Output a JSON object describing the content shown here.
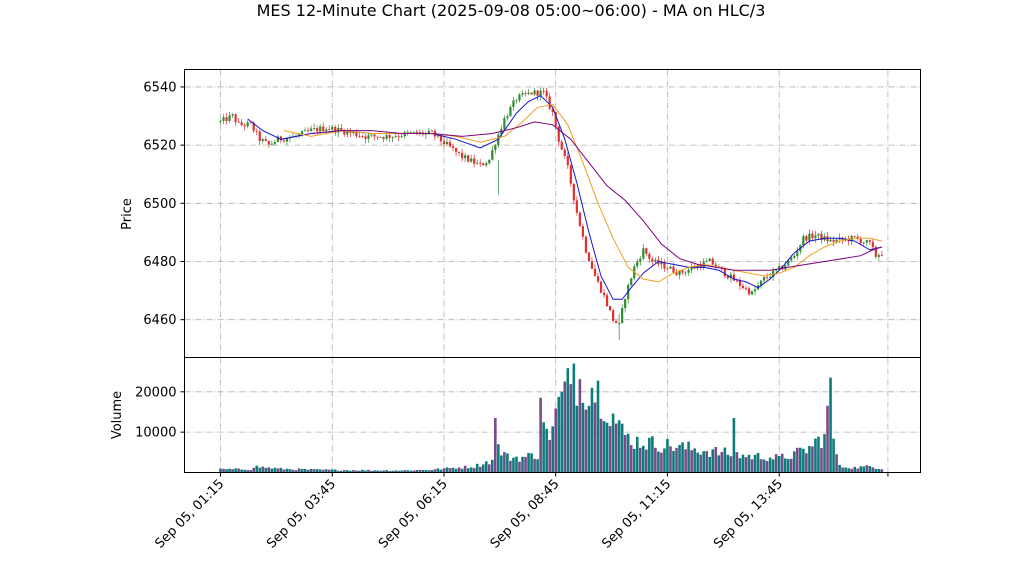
{
  "chart_data": {
    "type": "candlestick",
    "title": "MES 12-Minute Chart (2025-09-08 05:00~06:00) - MA on HLC/3",
    "price_panel": {
      "ylabel": "Price",
      "ylim": [
        6447,
        6546
      ],
      "yticks": [
        6460,
        6480,
        6500,
        6520,
        6540
      ],
      "grid": true,
      "candle_colors": {
        "up": "#2e8b2e",
        "down": "#e03030"
      },
      "price_path": [
        [
          0,
          6528
        ],
        [
          4,
          6530
        ],
        [
          6,
          6527
        ],
        [
          10,
          6527
        ],
        [
          13,
          6522
        ],
        [
          16,
          6520
        ],
        [
          19,
          6522
        ],
        [
          25,
          6523
        ],
        [
          30,
          6525
        ],
        [
          35,
          6526
        ],
        [
          40,
          6525
        ],
        [
          48,
          6523
        ],
        [
          55,
          6523
        ],
        [
          63,
          6524
        ],
        [
          70,
          6524
        ],
        [
          75,
          6520
        ],
        [
          80,
          6516
        ],
        [
          86,
          6513
        ],
        [
          89,
          6515
        ],
        [
          91,
          6521
        ],
        [
          94,
          6529
        ],
        [
          98,
          6536
        ],
        [
          103,
          6538
        ],
        [
          107,
          6538
        ],
        [
          110,
          6531
        ],
        [
          112,
          6522
        ],
        [
          115,
          6512
        ],
        [
          118,
          6497
        ],
        [
          121,
          6484
        ],
        [
          124,
          6475
        ],
        [
          127,
          6468
        ],
        [
          130,
          6460
        ],
        [
          132,
          6458
        ],
        [
          134,
          6468
        ],
        [
          137,
          6478
        ],
        [
          140,
          6484
        ],
        [
          143,
          6480
        ],
        [
          148,
          6478
        ],
        [
          152,
          6476
        ],
        [
          157,
          6478
        ],
        [
          162,
          6480
        ],
        [
          167,
          6476
        ],
        [
          172,
          6472
        ],
        [
          176,
          6469
        ],
        [
          180,
          6474
        ],
        [
          186,
          6478
        ],
        [
          190,
          6482
        ],
        [
          193,
          6488
        ],
        [
          197,
          6489
        ],
        [
          202,
          6487
        ],
        [
          210,
          6488
        ],
        [
          215,
          6486
        ],
        [
          217,
          6482
        ],
        [
          219,
          6483
        ]
      ],
      "moving_averages": [
        {
          "color": "#1515d0",
          "points": [
            [
              9,
              6529
            ],
            [
              14,
              6525
            ],
            [
              20,
              6522
            ],
            [
              30,
              6524
            ],
            [
              40,
              6525
            ],
            [
              50,
              6524
            ],
            [
              60,
              6524
            ],
            [
              70,
              6524
            ],
            [
              78,
              6522
            ],
            [
              86,
              6519
            ],
            [
              92,
              6522
            ],
            [
              98,
              6531
            ],
            [
              102,
              6535
            ],
            [
              106,
              6537
            ],
            [
              110,
              6533
            ],
            [
              114,
              6522
            ],
            [
              118,
              6507
            ],
            [
              122,
              6490
            ],
            [
              126,
              6475
            ],
            [
              130,
              6467
            ],
            [
              133,
              6467
            ],
            [
              136,
              6471
            ],
            [
              140,
              6476
            ],
            [
              145,
              6480
            ],
            [
              150,
              6479
            ],
            [
              155,
              6478
            ],
            [
              160,
              6478
            ],
            [
              165,
              6477
            ],
            [
              170,
              6474
            ],
            [
              174,
              6473
            ],
            [
              178,
              6471
            ],
            [
              182,
              6474
            ],
            [
              186,
              6478
            ],
            [
              190,
              6483
            ],
            [
              195,
              6487
            ],
            [
              200,
              6488
            ],
            [
              205,
              6488
            ],
            [
              210,
              6487
            ],
            [
              215,
              6484
            ],
            [
              219,
              6485
            ]
          ]
        },
        {
          "color": "#f0a020",
          "points": [
            [
              21,
              6525
            ],
            [
              30,
              6523
            ],
            [
              40,
              6525
            ],
            [
              50,
              6524
            ],
            [
              60,
              6524
            ],
            [
              70,
              6524
            ],
            [
              78,
              6523
            ],
            [
              86,
              6521
            ],
            [
              94,
              6523
            ],
            [
              100,
              6528
            ],
            [
              105,
              6533
            ],
            [
              110,
              6534
            ],
            [
              115,
              6527
            ],
            [
              120,
              6514
            ],
            [
              125,
              6500
            ],
            [
              130,
              6488
            ],
            [
              135,
              6478
            ],
            [
              140,
              6474
            ],
            [
              145,
              6473
            ],
            [
              150,
              6476
            ],
            [
              155,
              6478
            ],
            [
              160,
              6479
            ],
            [
              165,
              6478
            ],
            [
              170,
              6477
            ],
            [
              175,
              6476
            ],
            [
              180,
              6475
            ],
            [
              185,
              6476
            ],
            [
              190,
              6478
            ],
            [
              195,
              6482
            ],
            [
              200,
              6485
            ],
            [
              205,
              6487
            ],
            [
              210,
              6488
            ],
            [
              215,
              6488
            ],
            [
              219,
              6487
            ]
          ]
        },
        {
          "color": "#800080",
          "points": [
            [
              30,
              6524
            ],
            [
              40,
              6525
            ],
            [
              50,
              6525
            ],
            [
              60,
              6524
            ],
            [
              70,
              6524
            ],
            [
              80,
              6523
            ],
            [
              90,
              6524
            ],
            [
              98,
              6526
            ],
            [
              104,
              6528
            ],
            [
              110,
              6527
            ],
            [
              116,
              6522
            ],
            [
              122,
              6514
            ],
            [
              128,
              6506
            ],
            [
              134,
              6501
            ],
            [
              140,
              6494
            ],
            [
              146,
              6486
            ],
            [
              152,
              6481
            ],
            [
              158,
              6479
            ],
            [
              164,
              6478
            ],
            [
              170,
              6477
            ],
            [
              176,
              6477
            ],
            [
              182,
              6477
            ],
            [
              188,
              6478
            ],
            [
              194,
              6479
            ],
            [
              200,
              6480
            ],
            [
              206,
              6481
            ],
            [
              212,
              6482
            ],
            [
              216,
              6484
            ],
            [
              219,
              6485
            ]
          ]
        }
      ]
    },
    "volume_panel": {
      "ylabel": "Volume",
      "ylim": [
        0,
        28500
      ],
      "yticks": [
        10000,
        20000
      ],
      "grid": true,
      "bar_colors": [
        "#0e7c7b",
        "#7a4a8a"
      ],
      "volume_path": [
        [
          0,
          800
        ],
        [
          10,
          800
        ],
        [
          11,
          1500
        ],
        [
          20,
          900
        ],
        [
          30,
          700
        ],
        [
          40,
          600
        ],
        [
          60,
          500
        ],
        [
          70,
          700
        ],
        [
          78,
          1200
        ],
        [
          84,
          1500
        ],
        [
          90,
          3000
        ],
        [
          91,
          13500
        ],
        [
          92,
          6000
        ],
        [
          95,
          3800
        ],
        [
          100,
          3700
        ],
        [
          105,
          4500
        ],
        [
          106,
          18500
        ],
        [
          108,
          9000
        ],
        [
          110,
          11000
        ],
        [
          112,
          17000
        ],
        [
          115,
          21000
        ],
        [
          118,
          23000
        ],
        [
          121,
          22000
        ],
        [
          124,
          21000
        ],
        [
          127,
          18000
        ],
        [
          130,
          14000
        ],
        [
          133,
          10000
        ],
        [
          136,
          8000
        ],
        [
          140,
          7500
        ],
        [
          145,
          7000
        ],
        [
          150,
          6500
        ],
        [
          155,
          6000
        ],
        [
          160,
          5500
        ],
        [
          165,
          5000
        ],
        [
          170,
          4500
        ],
        [
          175,
          4000
        ],
        [
          180,
          4000
        ],
        [
          185,
          3500
        ],
        [
          190,
          4500
        ],
        [
          195,
          6000
        ],
        [
          198,
          8000
        ],
        [
          200,
          9000
        ],
        [
          201,
          14000
        ],
        [
          202,
          22000
        ],
        [
          203,
          8000
        ],
        [
          205,
          1500
        ],
        [
          210,
          1200
        ],
        [
          215,
          1500
        ],
        [
          219,
          1000
        ]
      ],
      "volume_spikes": [
        [
          91,
          13500
        ],
        [
          106,
          18500
        ],
        [
          117,
          27000
        ],
        [
          170,
          13500
        ],
        [
          202,
          23500
        ]
      ]
    },
    "n_bars": 220,
    "x_tick_labels": [
      {
        "bar": 0,
        "label": "Sep 05, 01:15"
      },
      {
        "bar": 37,
        "label": "Sep 05, 03:45"
      },
      {
        "bar": 74,
        "label": "Sep 05, 06:15"
      },
      {
        "bar": 111,
        "label": "Sep 05, 08:45"
      },
      {
        "bar": 148,
        "label": "Sep 05, 11:15"
      },
      {
        "bar": 185,
        "label": "Sep 05, 13:45"
      }
    ],
    "x_end_tick_bar": 221
  }
}
